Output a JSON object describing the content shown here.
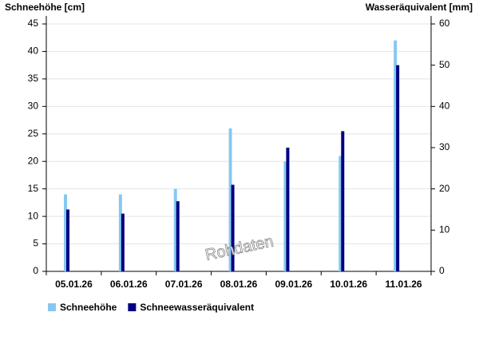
{
  "chart_data": {
    "type": "bar",
    "ylabel": "Schneehöhe [cm]",
    "y2label": "Wasseräquivalent [mm]",
    "watermark": "Rohdaten",
    "categories": [
      "05.01.26",
      "06.01.26",
      "07.01.26",
      "08.01.26",
      "09.01.26",
      "10.01.26",
      "11.01.26"
    ],
    "series": [
      {
        "name": "Schneehöhe",
        "color": "#87c8f0",
        "values": [
          14,
          14,
          15,
          26,
          20,
          21,
          42
        ]
      },
      {
        "name": "Schneewasseräquivalent",
        "color": "#000080",
        "axis": "y2",
        "values": [
          15,
          14,
          17,
          21,
          30,
          34,
          50
        ]
      }
    ],
    "ylim": [
      0,
      45
    ],
    "yticks": [
      0,
      5,
      10,
      15,
      20,
      25,
      30,
      35,
      40,
      45
    ],
    "y2lim": [
      0,
      60
    ],
    "y2ticks": [
      0,
      10,
      20,
      30,
      40,
      50,
      60
    ],
    "grid": true
  }
}
